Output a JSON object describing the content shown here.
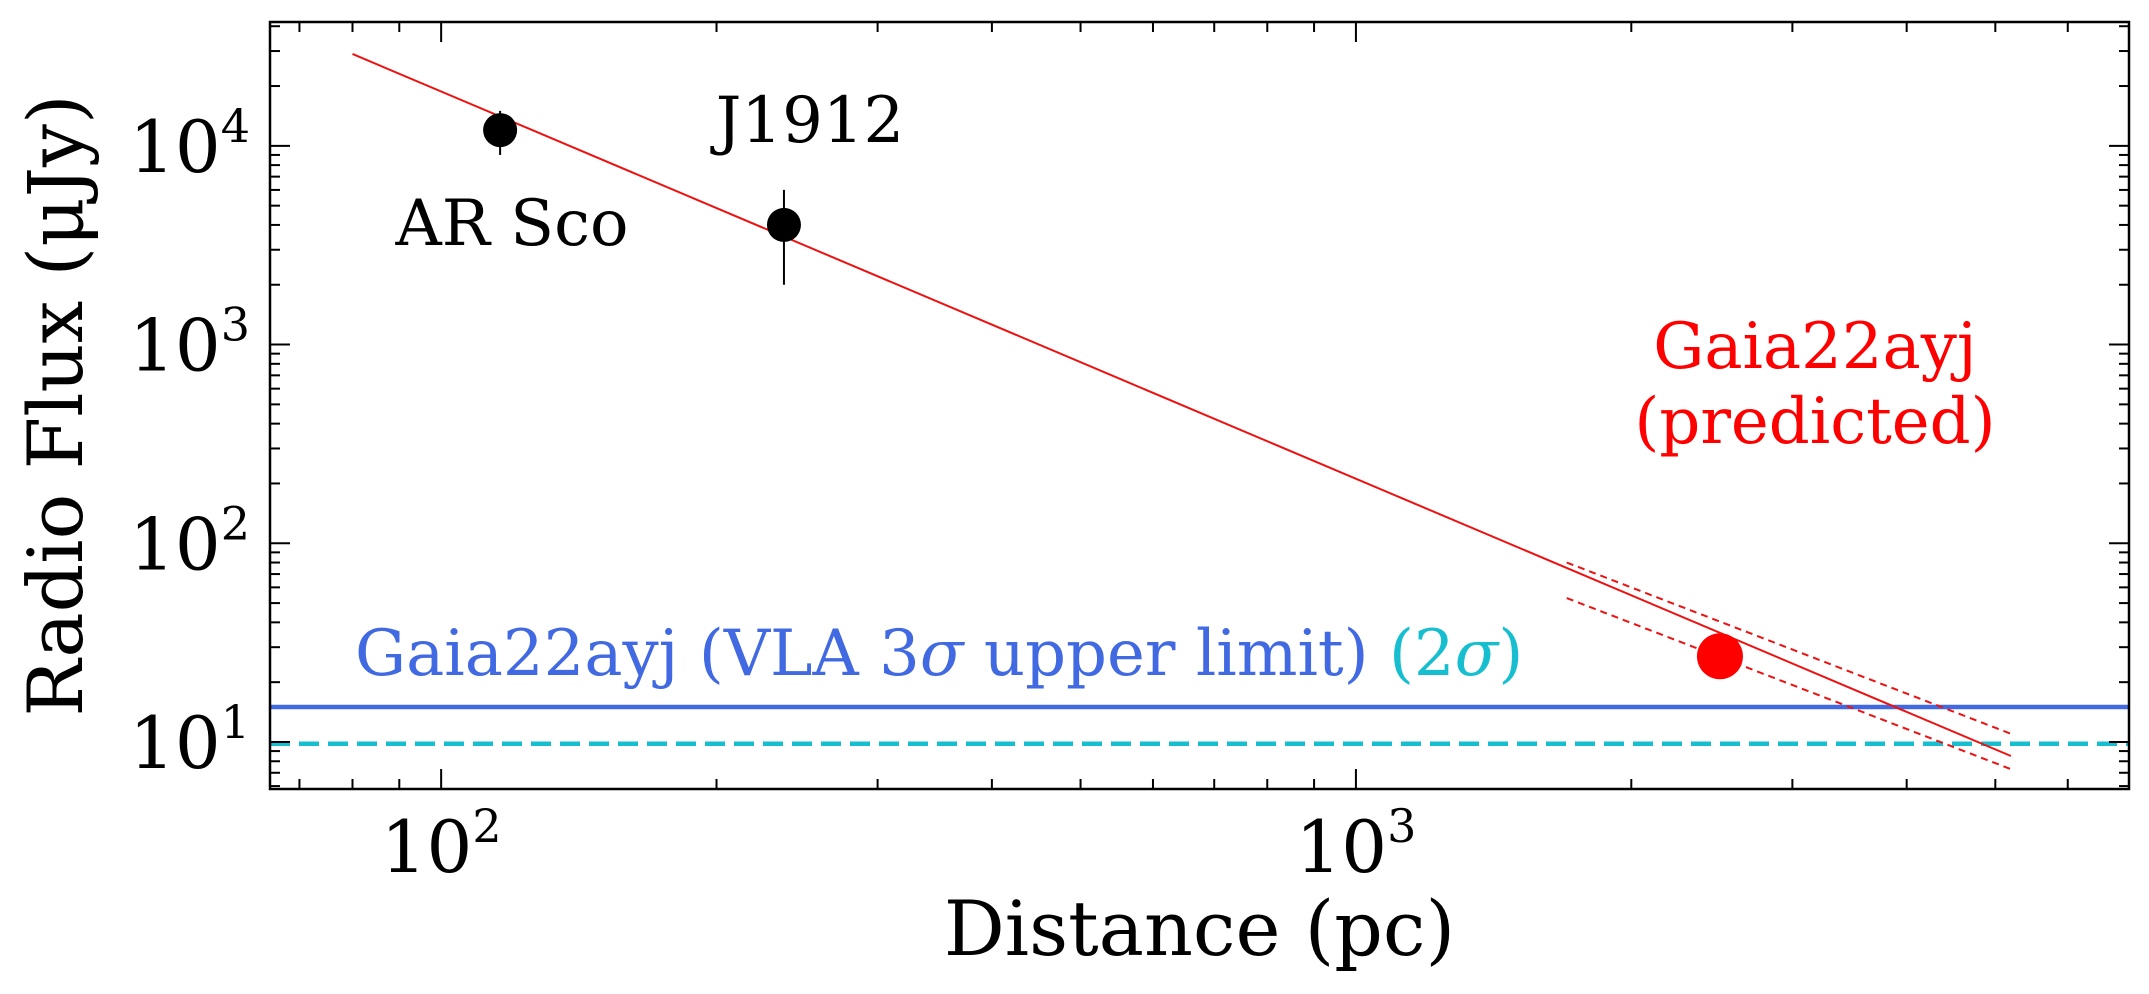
{
  "chart_data": {
    "type": "scatter",
    "xscale": "log",
    "yscale": "log",
    "xlim": [
      65,
      7000
    ],
    "ylim": [
      5.8,
      42000
    ],
    "xlabel": "Distance (pc)",
    "ylabel": "Radio Flux (μJy)",
    "x_ticks": [
      {
        "value": 100,
        "base": "10",
        "exp": "2"
      },
      {
        "value": 1000,
        "base": "10",
        "exp": "3"
      }
    ],
    "y_ticks": [
      {
        "value": 10,
        "base": "10",
        "exp": "1"
      },
      {
        "value": 100,
        "base": "10",
        "exp": "2"
      },
      {
        "value": 1000,
        "base": "10",
        "exp": "3"
      },
      {
        "value": 10000,
        "base": "10",
        "exp": "4"
      }
    ],
    "observed": [
      {
        "name": "AR Sco",
        "label": "AR Sco",
        "distance": 116,
        "flux": 12000,
        "flux_err_low": 3000,
        "flux_err_high": 3000
      },
      {
        "name": "J1912",
        "label": "J1912",
        "distance": 237,
        "flux": 4000,
        "flux_err_low": 2000,
        "flux_err_high": 2000
      }
    ],
    "predicted": {
      "label_line1": "Gaia22ayj",
      "label_line2": "(predicted)",
      "distance": 2500,
      "flux": 27
    },
    "fit_line": {
      "x": [
        80,
        5200
      ],
      "y": [
        29000,
        8.5
      ]
    },
    "fit_band": {
      "x": [
        1700,
        5200
      ],
      "upper_y": [
        80,
        11
      ],
      "lower_y": [
        53,
        7.3
      ]
    },
    "limits": [
      {
        "name": "3sigma",
        "flux": 15,
        "style": "solid"
      },
      {
        "name": "2sigma",
        "flux": 9.8,
        "style": "dashed"
      }
    ],
    "limit_label": {
      "main": "Gaia22ayj (VLA 3",
      "sigma1": "σ",
      "mid": " upper limit) ",
      "paren_open": "(2",
      "sigma2": "σ",
      "paren_close": ")"
    }
  },
  "colors": {
    "point": "#000000",
    "predicted": "#ff0000",
    "fit": "#ee1111",
    "limit_3sigma": "#4169e1",
    "limit_2sigma": "#17becf",
    "axis": "#000000"
  }
}
